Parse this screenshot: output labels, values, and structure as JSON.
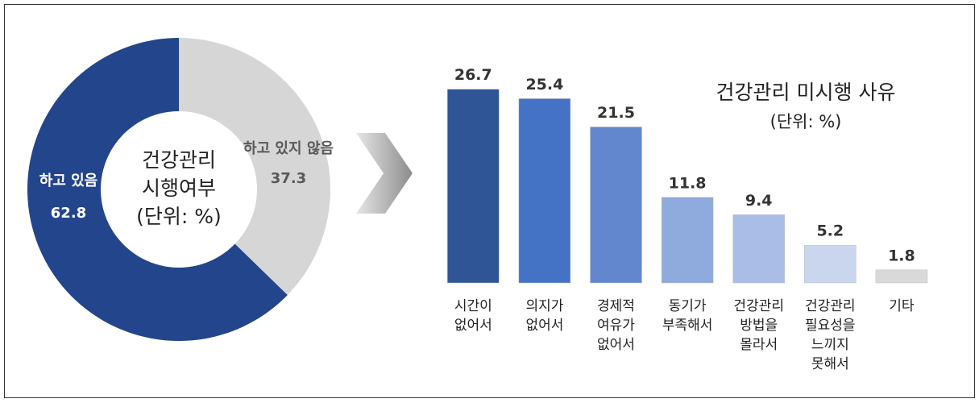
{
  "chart_data": [
    {
      "type": "pie",
      "donut": true,
      "center_text": [
        "건강관리",
        "시행여부",
        "(단위: %)"
      ],
      "categories": [
        "하고 있음",
        "하고 있지 않음"
      ],
      "values": [
        62.8,
        37.3
      ],
      "colors": [
        "#23458b",
        "#d6d6d6"
      ]
    },
    {
      "type": "bar",
      "title": "건강관리 미시행 사유",
      "subtitle": "(단위: %)",
      "categories": [
        [
          "시간이",
          "없어서"
        ],
        [
          "의지가",
          "없어서"
        ],
        [
          "경제적",
          "여유가",
          "없어서"
        ],
        [
          "동기가",
          "부족해서"
        ],
        [
          "건강관리",
          "방법을",
          "몰라서"
        ],
        [
          "건강관리",
          "필요성을",
          "느끼지",
          "못해서"
        ],
        [
          "기타"
        ]
      ],
      "values": [
        26.7,
        25.4,
        21.5,
        11.8,
        9.4,
        5.2,
        1.8
      ],
      "colors": [
        "#2f5597",
        "#4472c4",
        "#6287cf",
        "#8faadc",
        "#a9bde6",
        "#c9d6ee",
        "#d9d9d9"
      ],
      "ylim": [
        0,
        30
      ]
    }
  ]
}
